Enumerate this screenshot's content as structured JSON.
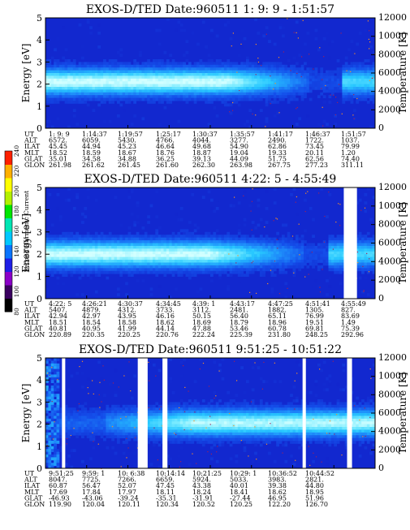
{
  "chart_data": [
    {
      "type": "heatmap",
      "title": "EXOS-D/TED   Date:960511  1: 9: 9 - 1:51:57",
      "ylabel": "Energy [eV]",
      "y2label": "Temperature [K]",
      "ylim": [
        0,
        5
      ],
      "y2lim": [
        0,
        12000
      ],
      "y_ticks": [
        "0",
        "1",
        "2",
        "3",
        "4",
        "5"
      ],
      "y2_ticks": [
        "0",
        "2000",
        "4000",
        "6000",
        "8000",
        "10000",
        "12000"
      ],
      "gaps": [],
      "band": {
        "center_ev": 2.1,
        "peak_until": 0.55,
        "fade_until": 0.8,
        "recovery_from": 0.9
      },
      "ephemeris": {
        "labels": [
          "UT",
          "ALT",
          "ILAT",
          "MLT",
          "GLAT",
          "GLON"
        ],
        "columns": [
          [
            "1: 9: 9",
            "6572.",
            "45.45",
            "18.52",
            "35.01",
            "261.98"
          ],
          [
            "1:14:37",
            "6059.",
            "44.94",
            "18.59",
            "34.58",
            "261.62"
          ],
          [
            "1:19:57",
            "5430.",
            "45.23",
            "18.67",
            "34.88",
            "261.45"
          ],
          [
            "1:25:17",
            "4766.",
            "46.64",
            "18.76",
            "36.25",
            "261.60"
          ],
          [
            "1:30:37",
            "4044.",
            "49.68",
            "18.87",
            "39.13",
            "262.30"
          ],
          [
            "1:35:57",
            "3277.",
            "54.90",
            "19.04",
            "44.09",
            "263.98"
          ],
          [
            "1:41:17",
            "2490.",
            "62.86",
            "19.33",
            "51.75",
            "267.75"
          ],
          [
            "1:46:37",
            "1722.",
            "73.45",
            "20.11",
            "62.56",
            "277.23"
          ],
          [
            "1:51:57",
            "1037.",
            "79.99",
            "1.20",
            "74.40",
            "311.11"
          ]
        ]
      }
    },
    {
      "type": "heatmap",
      "title": "EXOS-D/TED   Date:960511  4:22: 5 - 4:55:49",
      "ylabel": "Energy [eV]",
      "y2label": "Temperature [K]",
      "ylim": [
        0,
        5
      ],
      "y2lim": [
        0,
        12000
      ],
      "y_ticks": [
        "0",
        "1",
        "2",
        "3",
        "4",
        "5"
      ],
      "y2_ticks": [
        "0",
        "2000",
        "4000",
        "6000",
        "8000",
        "10000",
        "12000"
      ],
      "gaps": [
        [
          0.905,
          0.945
        ]
      ],
      "band": {
        "center_ev": 2.0,
        "peak_until": 0.5,
        "fade_until": 0.78,
        "recovery_from": 0.86
      },
      "ephemeris": {
        "labels": [
          "UT",
          "ALT",
          "ILAT",
          "MLT",
          "GLAT",
          "GLON"
        ],
        "columns": [
          [
            "4:22: 5",
            "5407.",
            "42.94",
            "18.51",
            "40.81",
            "220.89"
          ],
          [
            "4:26:21",
            "4879.",
            "42.97",
            "18.54",
            "40.95",
            "220.35"
          ],
          [
            "4:30:37",
            "4312.",
            "43.95",
            "18.58",
            "41.99",
            "220.25"
          ],
          [
            "4:34:45",
            "3733.",
            "46.16",
            "18.62",
            "44.14",
            "220.76"
          ],
          [
            "4:39: 1",
            "3112.",
            "50.15",
            "18.69",
            "47.88",
            "222.24"
          ],
          [
            "4:43:17",
            "2481.",
            "56.40",
            "18.79",
            "53.46",
            "225.39"
          ],
          [
            "4:47:25",
            "1882.",
            "65.11",
            "18.96",
            "60.78",
            "231.80"
          ],
          [
            "4:51:41",
            "1305.",
            "76.99",
            "19.51",
            "69.81",
            "248.25"
          ],
          [
            "4:55:49",
            "827.",
            "83.69",
            "1.49",
            "75.39",
            "292.96"
          ]
        ]
      }
    },
    {
      "type": "heatmap",
      "title": "EXOS-D/TED   Date:960511  9:51:25 - 10:51:22",
      "ylabel": "Energy [eV]",
      "y2label": "Temperature [K]",
      "ylim": [
        0,
        5
      ],
      "y2lim": [
        0,
        12000
      ],
      "y_ticks": [
        "0",
        "1",
        "2",
        "3",
        "4",
        "5"
      ],
      "y2_ticks": [
        "0",
        "2000",
        "4000",
        "6000",
        "8000",
        "10000",
        "12000"
      ],
      "gaps": [
        [
          0.05,
          0.06
        ],
        [
          0.28,
          0.31
        ],
        [
          0.355,
          0.37
        ],
        [
          0.78,
          0.79
        ],
        [
          0.915,
          0.93
        ]
      ],
      "band": {
        "center_ev": 2.05,
        "peak_until": 0.0,
        "fade_until": 0.0,
        "recovery_from": 0.45
      },
      "ephemeris": {
        "labels": [
          "UT",
          "ALT",
          "ILAT",
          "MLT",
          "GLAT",
          "GLON"
        ],
        "columns": [
          [
            "9:51:25",
            "8047.",
            "60.87",
            "17.69",
            "-46.93",
            "119.90"
          ],
          [
            "9:59: 1",
            "7725.",
            "56.47",
            "17.84",
            "-43.06",
            "120.04"
          ],
          [
            "10: 6:38",
            "7266.",
            "52.07",
            "17.97",
            "-39.24",
            "120.11"
          ],
          [
            "10:14:14",
            "6659.",
            "47.45",
            "18.11",
            "-35.31",
            "120.34"
          ],
          [
            "10:21:25",
            "5924.",
            "43.38",
            "18.24",
            "-31.91",
            "120.52"
          ],
          [
            "10:29: 1",
            "5033.",
            "40.01",
            "18.41",
            "-27.44",
            "120.25"
          ],
          [
            "10:36:52",
            "3983.",
            "39.38",
            "18.62",
            "46.95",
            "122.20"
          ],
          [
            "10:44:52",
            "2821.",
            "44.80",
            "18.95",
            "51.96",
            "126.70"
          ],
          [
            "",
            "",
            "",
            "",
            "",
            ""
          ]
        ]
      }
    }
  ],
  "colorbar": {
    "label": "Second Harmonic Current",
    "ticks": [
      "80",
      "100",
      "120",
      "140",
      "160",
      "180",
      "200",
      "220",
      "240"
    ],
    "colors": [
      "#000000",
      "#3a0060",
      "#8a00c8",
      "#1e1ee6",
      "#0a74ff",
      "#00c8ff",
      "#00e6b4",
      "#00e600",
      "#b4f000",
      "#ffff00",
      "#ffb000",
      "#ff2000"
    ]
  }
}
